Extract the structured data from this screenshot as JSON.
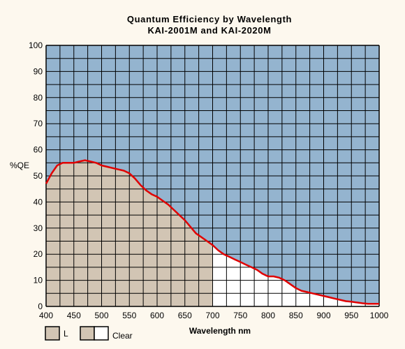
{
  "chart_data": {
    "type": "area",
    "title": "Quantum Efficiency by Wavelength",
    "subtitle": "KAI-2001M and KAI-2020M",
    "xlabel": "Wavelength nm",
    "ylabel": "%QE",
    "xlim": [
      400,
      1000
    ],
    "ylim": [
      0,
      100
    ],
    "x_ticks": [
      "400",
      "450",
      "500",
      "550",
      "600",
      "650",
      "700",
      "750",
      "800",
      "850",
      "900",
      "950",
      "1000"
    ],
    "y_ticks": [
      "0",
      "10",
      "20",
      "30",
      "40",
      "50",
      "60",
      "70",
      "80",
      "90",
      "100"
    ],
    "grid": true,
    "legend_position": "bottom-left",
    "colors": {
      "background": "#94b4cf",
      "l_band_fill": "#d2c5b4",
      "clear_band_fill": "#ffffff",
      "curve": "#e00000",
      "grid": "#000000"
    },
    "series": [
      {
        "name": "",
        "x": [
          400,
          410,
          420,
          430,
          440,
          450,
          460,
          470,
          480,
          490,
          500,
          510,
          520,
          530,
          540,
          550,
          560,
          570,
          580,
          590,
          600,
          610,
          620,
          630,
          640,
          650,
          660,
          670,
          680,
          690,
          700,
          710,
          720,
          730,
          740,
          750,
          760,
          770,
          780,
          790,
          800,
          810,
          820,
          830,
          840,
          850,
          860,
          870,
          880,
          890,
          900,
          910,
          920,
          930,
          940,
          950,
          960,
          970,
          980,
          990,
          1000
        ],
        "y": [
          47,
          51,
          54,
          55,
          55,
          55,
          55.5,
          56,
          55.5,
          55,
          54,
          53.5,
          53,
          52.5,
          52,
          51,
          49,
          46.5,
          44.5,
          43,
          42,
          40.5,
          39,
          37,
          35,
          33,
          30.5,
          28,
          26.5,
          25,
          23.5,
          21.5,
          20,
          19,
          18,
          17,
          16,
          15,
          14,
          12.5,
          11.5,
          11.5,
          11,
          10,
          8.5,
          7,
          6,
          5.5,
          5,
          4.5,
          4,
          3.5,
          3,
          2.5,
          2,
          1.8,
          1.5,
          1.2,
          1,
          1,
          1
        ]
      }
    ],
    "bands": [
      {
        "label": "L",
        "x_range": [
          400,
          700
        ]
      },
      {
        "label": "Clear",
        "x_range": [
          700,
          1000
        ]
      }
    ]
  }
}
